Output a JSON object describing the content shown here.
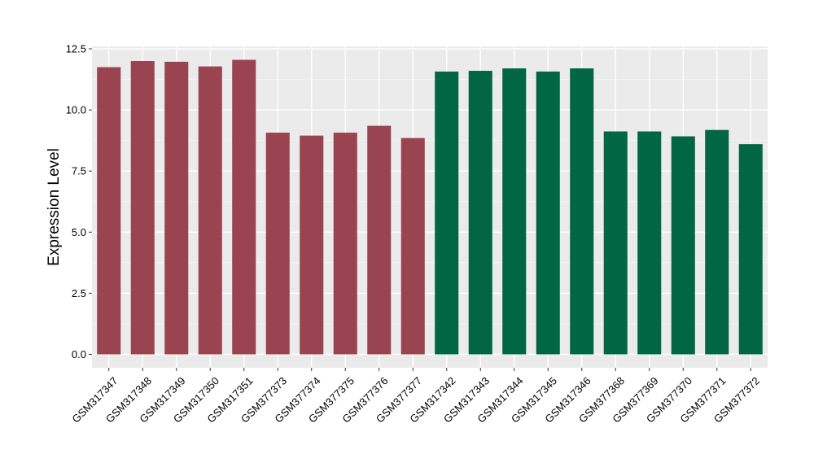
{
  "chart_data": {
    "type": "bar",
    "ylabel": "Expression Level",
    "xlabel": "",
    "ylim": [
      -0.55,
      12.6
    ],
    "yticks": [
      0.0,
      2.5,
      5.0,
      7.5,
      10.0,
      12.5
    ],
    "ytick_labels": [
      "0.0",
      "2.5",
      "5.0",
      "7.5",
      "10.0",
      "12.5"
    ],
    "grid": true,
    "legend": "none",
    "categories": [
      "GSM317347",
      "GSM317348",
      "GSM317349",
      "GSM317350",
      "GSM317351",
      "GSM377373",
      "GSM377374",
      "GSM377375",
      "GSM377376",
      "GSM377377",
      "GSM317342",
      "GSM317343",
      "GSM317344",
      "GSM317345",
      "GSM317346",
      "GSM377368",
      "GSM377369",
      "GSM377370",
      "GSM377371",
      "GSM377372"
    ],
    "values": [
      11.75,
      12.0,
      11.97,
      11.78,
      12.05,
      9.07,
      8.95,
      9.07,
      9.35,
      8.85,
      11.57,
      11.6,
      11.7,
      11.57,
      11.7,
      9.12,
      9.12,
      8.92,
      9.18,
      8.6
    ],
    "groups": [
      1,
      1,
      1,
      1,
      1,
      1,
      1,
      1,
      1,
      1,
      2,
      2,
      2,
      2,
      2,
      2,
      2,
      2,
      2,
      2
    ],
    "colors": {
      "group1": "#994450",
      "group2": "#006643",
      "panel": "#ebebeb",
      "grid_major": "#ffffff",
      "grid_minor": "#f5f5f5"
    }
  }
}
